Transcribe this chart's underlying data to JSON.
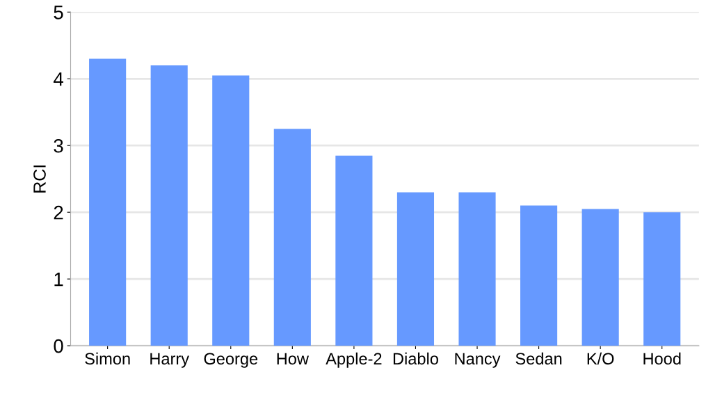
{
  "chart_data": {
    "type": "bar",
    "ylabel": "RCI",
    "categories": [
      "Simon",
      "Harry",
      "George",
      "How",
      "Apple-2",
      "Diablo",
      "Nancy",
      "Sedan",
      "K/O",
      "Hood"
    ],
    "values": [
      4.3,
      4.2,
      4.05,
      3.25,
      2.85,
      2.3,
      2.3,
      2.1,
      2.05,
      2.0
    ],
    "color": "#6699ff",
    "ylim": [
      0,
      5
    ],
    "yticks": [
      0,
      1,
      2,
      3,
      4,
      5
    ],
    "grid": "y"
  }
}
